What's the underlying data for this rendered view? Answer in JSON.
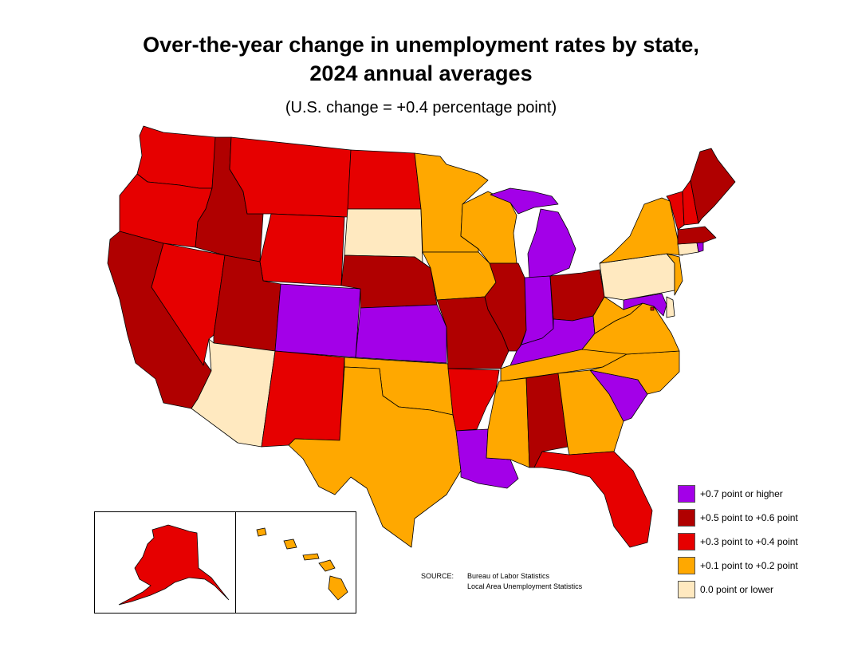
{
  "title_line1": "Over-the-year change in unemployment rates by state,",
  "title_line2": "2024 annual averages",
  "subtitle": "(U.S. change = +0.4 percentage point)",
  "colors": {
    "purple": "#a300e8",
    "darkred": "#b00000",
    "red": "#e60000",
    "orange": "#ffa800",
    "cream": "#ffe9c0"
  },
  "legend": [
    {
      "label": "+0.7 point or higher",
      "color": "#a300e8"
    },
    {
      "label": "+0.5 point to +0.6 point",
      "color": "#b00000"
    },
    {
      "label": "+0.3 point to +0.4 point",
      "color": "#e60000"
    },
    {
      "label": "+0.1 point to +0.2 point",
      "color": "#ffa800"
    },
    {
      "label": "0.0 point or lower",
      "color": "#ffe9c0"
    }
  ],
  "source": {
    "label": "SOURCE:",
    "line1": "Bureau of Labor Statistics",
    "line2": "Local Area Unemployment Statistics"
  },
  "states": {
    "WA": "red",
    "OR": "red",
    "CA": "darkred",
    "NV": "red",
    "ID": "darkred",
    "MT": "red",
    "WY": "red",
    "UT": "darkred",
    "AZ": "cream",
    "CO": "purple",
    "NM": "red",
    "ND": "red",
    "SD": "cream",
    "NE": "darkred",
    "KS": "purple",
    "OK": "orange",
    "TX": "orange",
    "MN": "orange",
    "IA": "orange",
    "MO": "darkred",
    "AR": "red",
    "LA": "purple",
    "WI": "orange",
    "IL": "darkred",
    "MI": "purple",
    "IN": "purple",
    "OH": "darkred",
    "KY": "purple",
    "TN": "orange",
    "MS": "orange",
    "AL": "darkred",
    "GA": "orange",
    "FL": "red",
    "SC": "purple",
    "NC": "orange",
    "VA": "orange",
    "WV": "orange",
    "MD": "purple",
    "DE": "cream",
    "NJ": "orange",
    "PA": "cream",
    "NY": "orange",
    "CT": "cream",
    "RI": "purple",
    "MA": "darkred",
    "VT": "red",
    "NH": "red",
    "ME": "darkred",
    "DC": "red",
    "AK": "red",
    "HI": "orange"
  }
}
